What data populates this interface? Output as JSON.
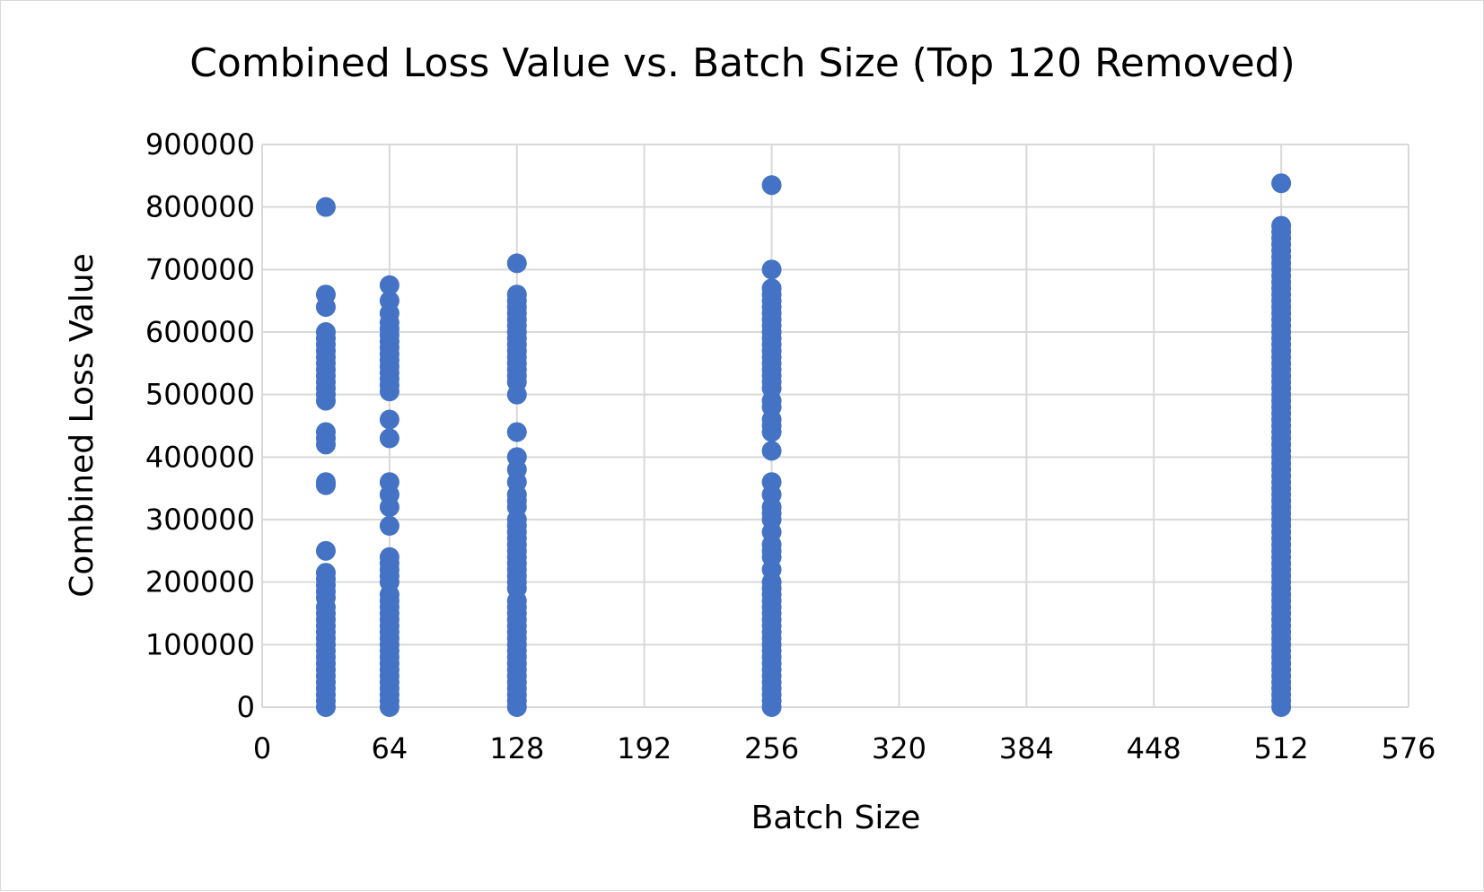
{
  "chart_data": {
    "type": "scatter",
    "title": "Combined Loss Value vs. Batch Size (Top 120 Removed)",
    "xlabel": "Batch Size",
    "ylabel": "Combined Loss Value",
    "xlim": [
      0,
      576
    ],
    "ylim": [
      0,
      900000
    ],
    "x_ticks": [
      0,
      64,
      128,
      192,
      256,
      320,
      384,
      448,
      512,
      576
    ],
    "y_ticks": [
      0,
      100000,
      200000,
      300000,
      400000,
      500000,
      600000,
      700000,
      800000,
      900000
    ],
    "grid": true,
    "legend": "none",
    "marker_color": "#4472C4",
    "series": [
      {
        "x": 32,
        "values": [
          0,
          10000,
          20000,
          30000,
          40000,
          50000,
          60000,
          70000,
          80000,
          90000,
          100000,
          110000,
          120000,
          130000,
          140000,
          150000,
          160000,
          175000,
          185000,
          195000,
          205000,
          215000,
          250000,
          355000,
          360000,
          420000,
          430000,
          440000,
          490000,
          500000,
          510000,
          520000,
          530000,
          540000,
          550000,
          560000,
          570000,
          580000,
          590000,
          600000,
          640000,
          660000,
          800000
        ]
      },
      {
        "x": 64,
        "values": [
          0,
          10000,
          20000,
          30000,
          40000,
          50000,
          60000,
          70000,
          80000,
          90000,
          100000,
          110000,
          120000,
          130000,
          140000,
          150000,
          160000,
          170000,
          180000,
          200000,
          210000,
          220000,
          230000,
          240000,
          290000,
          320000,
          340000,
          360000,
          430000,
          460000,
          505000,
          515000,
          525000,
          535000,
          545000,
          555000,
          565000,
          575000,
          585000,
          595000,
          605000,
          615000,
          630000,
          650000,
          675000
        ]
      },
      {
        "x": 128,
        "values": [
          0,
          10000,
          20000,
          30000,
          40000,
          50000,
          60000,
          70000,
          80000,
          90000,
          100000,
          110000,
          120000,
          130000,
          140000,
          150000,
          160000,
          170000,
          190000,
          200000,
          210000,
          220000,
          230000,
          240000,
          250000,
          260000,
          270000,
          280000,
          290000,
          300000,
          320000,
          330000,
          340000,
          360000,
          380000,
          400000,
          440000,
          500000,
          520000,
          530000,
          540000,
          550000,
          560000,
          570000,
          580000,
          590000,
          600000,
          610000,
          620000,
          630000,
          640000,
          650000,
          660000,
          710000
        ]
      },
      {
        "x": 256,
        "values": [
          0,
          10000,
          20000,
          30000,
          40000,
          50000,
          60000,
          70000,
          80000,
          90000,
          100000,
          110000,
          120000,
          130000,
          140000,
          150000,
          160000,
          170000,
          180000,
          190000,
          200000,
          220000,
          240000,
          250000,
          260000,
          280000,
          300000,
          310000,
          320000,
          340000,
          360000,
          410000,
          440000,
          450000,
          460000,
          480000,
          490000,
          510000,
          520000,
          530000,
          540000,
          550000,
          560000,
          570000,
          580000,
          590000,
          600000,
          610000,
          620000,
          630000,
          640000,
          650000,
          660000,
          670000,
          700000,
          835000
        ]
      },
      {
        "x": 512,
        "values": [
          0,
          10000,
          20000,
          30000,
          40000,
          50000,
          60000,
          70000,
          80000,
          90000,
          100000,
          110000,
          120000,
          130000,
          140000,
          150000,
          160000,
          170000,
          180000,
          190000,
          200000,
          210000,
          220000,
          230000,
          240000,
          250000,
          260000,
          270000,
          280000,
          290000,
          300000,
          310000,
          320000,
          330000,
          340000,
          350000,
          360000,
          370000,
          380000,
          390000,
          400000,
          410000,
          420000,
          430000,
          440000,
          450000,
          460000,
          470000,
          480000,
          490000,
          500000,
          510000,
          520000,
          530000,
          540000,
          550000,
          560000,
          570000,
          580000,
          590000,
          600000,
          610000,
          620000,
          630000,
          640000,
          650000,
          660000,
          670000,
          680000,
          690000,
          700000,
          710000,
          720000,
          730000,
          740000,
          750000,
          760000,
          770000,
          838000
        ]
      }
    ]
  }
}
